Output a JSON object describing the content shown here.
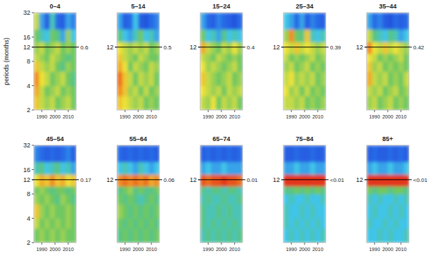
{
  "chart_data": [
    {
      "type": "heatmap",
      "title": "0–4",
      "y_label": "periods (months)",
      "log": "y",
      "xlim": [
        1984,
        2016
      ],
      "xticks": [
        1990,
        2000,
        2010
      ],
      "ylim": [
        2,
        32
      ],
      "yticks": [
        2,
        4,
        8,
        12,
        16,
        32
      ],
      "reference_line": 12,
      "annotation": "0.6",
      "zlim": [
        0,
        1
      ],
      "x_edges": [
        1984,
        1988,
        1992,
        1996,
        2000,
        2004,
        2008,
        2012,
        2016
      ],
      "y_edges": [
        2,
        3,
        4,
        6,
        8,
        10,
        14,
        20,
        32
      ],
      "cells": [
        [
          0.7,
          0.6,
          0.55,
          0.6,
          0.5,
          0.55,
          0.6,
          0.5
        ],
        [
          0.75,
          0.6,
          0.5,
          0.55,
          0.6,
          0.5,
          0.55,
          0.5
        ],
        [
          0.8,
          0.65,
          0.6,
          0.5,
          0.55,
          0.6,
          0.5,
          0.45
        ],
        [
          0.7,
          0.6,
          0.55,
          0.6,
          0.5,
          0.45,
          0.55,
          0.5
        ],
        [
          0.6,
          0.55,
          0.5,
          0.6,
          0.55,
          0.5,
          0.45,
          0.5
        ],
        [
          0.55,
          0.6,
          0.5,
          0.55,
          0.6,
          0.5,
          0.55,
          0.5
        ],
        [
          0.5,
          0.4,
          0.35,
          0.5,
          0.45,
          0.3,
          0.55,
          0.35
        ],
        [
          0.6,
          0.3,
          0.15,
          0.4,
          0.2,
          0.15,
          0.3,
          0.25
        ]
      ]
    },
    {
      "type": "heatmap",
      "title": "5–14",
      "log": "y",
      "xlim": [
        1984,
        2016
      ],
      "xticks": [
        1990,
        2000,
        2010
      ],
      "ylim": [
        2,
        32
      ],
      "yticks": [
        12
      ],
      "reference_line": 12,
      "annotation": "0.5",
      "zlim": [
        0,
        1
      ],
      "x_edges": [
        1984,
        1988,
        1992,
        1996,
        2000,
        2004,
        2008,
        2012,
        2016
      ],
      "y_edges": [
        2,
        3,
        4,
        6,
        8,
        10,
        14,
        20,
        32
      ],
      "cells": [
        [
          0.7,
          0.65,
          0.6,
          0.55,
          0.6,
          0.5,
          0.55,
          0.5
        ],
        [
          0.8,
          0.7,
          0.55,
          0.6,
          0.5,
          0.6,
          0.5,
          0.55
        ],
        [
          0.85,
          0.7,
          0.6,
          0.5,
          0.6,
          0.55,
          0.6,
          0.5
        ],
        [
          0.75,
          0.65,
          0.5,
          0.6,
          0.55,
          0.5,
          0.6,
          0.55
        ],
        [
          0.7,
          0.6,
          0.55,
          0.5,
          0.6,
          0.55,
          0.5,
          0.5
        ],
        [
          0.65,
          0.6,
          0.55,
          0.6,
          0.55,
          0.6,
          0.5,
          0.55
        ],
        [
          0.45,
          0.35,
          0.3,
          0.4,
          0.5,
          0.35,
          0.4,
          0.3
        ],
        [
          0.3,
          0.15,
          0.2,
          0.35,
          0.15,
          0.1,
          0.2,
          0.25
        ]
      ]
    },
    {
      "type": "heatmap",
      "title": "15–24",
      "log": "y",
      "xlim": [
        1984,
        2016
      ],
      "xticks": [
        1990,
        2000,
        2010
      ],
      "ylim": [
        2,
        32
      ],
      "yticks": [
        12
      ],
      "reference_line": 12,
      "annotation": "0.4",
      "zlim": [
        0,
        1
      ],
      "x_edges": [
        1984,
        1988,
        1992,
        1996,
        2000,
        2004,
        2008,
        2012,
        2016
      ],
      "y_edges": [
        2,
        3,
        4,
        6,
        8,
        10,
        14,
        20,
        32
      ],
      "cells": [
        [
          0.6,
          0.55,
          0.65,
          0.5,
          0.6,
          0.55,
          0.6,
          0.5
        ],
        [
          0.65,
          0.6,
          0.55,
          0.6,
          0.5,
          0.6,
          0.55,
          0.6
        ],
        [
          0.7,
          0.6,
          0.55,
          0.5,
          0.55,
          0.6,
          0.5,
          0.55
        ],
        [
          0.65,
          0.55,
          0.6,
          0.55,
          0.5,
          0.55,
          0.6,
          0.5
        ],
        [
          0.6,
          0.55,
          0.5,
          0.6,
          0.55,
          0.5,
          0.55,
          0.5
        ],
        [
          0.75,
          0.6,
          0.55,
          0.5,
          0.6,
          0.55,
          0.65,
          0.55
        ],
        [
          0.5,
          0.35,
          0.4,
          0.3,
          0.45,
          0.35,
          0.4,
          0.35
        ],
        [
          0.3,
          0.2,
          0.15,
          0.25,
          0.2,
          0.15,
          0.1,
          0.2
        ]
      ]
    },
    {
      "type": "heatmap",
      "title": "25–34",
      "log": "y",
      "xlim": [
        1984,
        2016
      ],
      "xticks": [
        1990,
        2000,
        2010
      ],
      "ylim": [
        2,
        32
      ],
      "yticks": [
        12
      ],
      "reference_line": 12,
      "annotation": "0.39",
      "zlim": [
        0,
        1
      ],
      "x_edges": [
        1984,
        1988,
        1992,
        1996,
        2000,
        2004,
        2008,
        2012,
        2016
      ],
      "y_edges": [
        2,
        3,
        4,
        6,
        8,
        10,
        14,
        20,
        32
      ],
      "cells": [
        [
          0.6,
          0.6,
          0.55,
          0.6,
          0.5,
          0.55,
          0.5,
          0.55
        ],
        [
          0.65,
          0.55,
          0.6,
          0.5,
          0.6,
          0.5,
          0.55,
          0.5
        ],
        [
          0.6,
          0.65,
          0.55,
          0.6,
          0.55,
          0.6,
          0.5,
          0.55
        ],
        [
          0.55,
          0.6,
          0.5,
          0.55,
          0.6,
          0.5,
          0.55,
          0.5
        ],
        [
          0.6,
          0.5,
          0.55,
          0.5,
          0.55,
          0.6,
          0.5,
          0.55
        ],
        [
          0.65,
          0.6,
          0.7,
          0.6,
          0.65,
          0.6,
          0.55,
          0.6
        ],
        [
          0.55,
          0.8,
          0.5,
          0.45,
          0.7,
          0.4,
          0.35,
          0.4
        ],
        [
          0.35,
          0.3,
          0.2,
          0.3,
          0.15,
          0.25,
          0.2,
          0.15
        ]
      ]
    },
    {
      "type": "heatmap",
      "title": "35–44",
      "log": "y",
      "xlim": [
        1984,
        2016
      ],
      "xticks": [
        1990,
        2000,
        2010
      ],
      "ylim": [
        2,
        32
      ],
      "yticks": [
        12
      ],
      "reference_line": 12,
      "annotation": "0.42",
      "zlim": [
        0,
        1
      ],
      "x_edges": [
        1984,
        1988,
        1992,
        1996,
        2000,
        2004,
        2008,
        2012,
        2016
      ],
      "y_edges": [
        2,
        3,
        4,
        6,
        8,
        10,
        14,
        20,
        32
      ],
      "cells": [
        [
          0.55,
          0.6,
          0.5,
          0.55,
          0.6,
          0.5,
          0.55,
          0.5
        ],
        [
          0.6,
          0.55,
          0.6,
          0.5,
          0.55,
          0.6,
          0.5,
          0.55
        ],
        [
          0.75,
          0.6,
          0.55,
          0.6,
          0.5,
          0.55,
          0.5,
          0.6
        ],
        [
          0.7,
          0.55,
          0.6,
          0.5,
          0.55,
          0.5,
          0.55,
          0.5
        ],
        [
          0.65,
          0.6,
          0.5,
          0.55,
          0.5,
          0.55,
          0.6,
          0.5
        ],
        [
          0.8,
          0.65,
          0.6,
          0.7,
          0.6,
          0.65,
          0.6,
          0.55
        ],
        [
          0.6,
          0.45,
          0.4,
          0.35,
          0.45,
          0.4,
          0.3,
          0.35
        ],
        [
          0.3,
          0.2,
          0.25,
          0.15,
          0.1,
          0.2,
          0.15,
          0.2
        ]
      ]
    },
    {
      "type": "heatmap",
      "title": "45–54",
      "log": "y",
      "xlim": [
        1984,
        2016
      ],
      "xticks": [
        1990,
        2000,
        2010
      ],
      "ylim": [
        2,
        32
      ],
      "yticks": [
        2,
        4,
        8,
        12,
        16,
        32
      ],
      "reference_line": 12,
      "annotation": "0.17",
      "zlim": [
        0,
        1
      ],
      "x_edges": [
        1984,
        1988,
        1992,
        1996,
        2000,
        2004,
        2008,
        2012,
        2016
      ],
      "y_edges": [
        2,
        3,
        4,
        6,
        8,
        10,
        14,
        20,
        32
      ],
      "cells": [
        [
          0.5,
          0.55,
          0.5,
          0.55,
          0.5,
          0.55,
          0.5,
          0.5
        ],
        [
          0.6,
          0.5,
          0.55,
          0.5,
          0.55,
          0.5,
          0.55,
          0.5
        ],
        [
          0.7,
          0.55,
          0.5,
          0.55,
          0.5,
          0.5,
          0.55,
          0.5
        ],
        [
          0.55,
          0.5,
          0.55,
          0.5,
          0.45,
          0.55,
          0.5,
          0.45
        ],
        [
          0.5,
          0.55,
          0.5,
          0.45,
          0.5,
          0.5,
          0.45,
          0.5
        ],
        [
          0.65,
          0.75,
          0.7,
          0.8,
          0.7,
          0.75,
          0.65,
          0.7
        ],
        [
          0.4,
          0.45,
          0.35,
          0.4,
          0.45,
          0.35,
          0.4,
          0.3
        ],
        [
          0.25,
          0.2,
          0.15,
          0.2,
          0.15,
          0.2,
          0.25,
          0.15
        ]
      ]
    },
    {
      "type": "heatmap",
      "title": "55–64",
      "log": "y",
      "xlim": [
        1984,
        2016
      ],
      "xticks": [
        1990,
        2000,
        2010
      ],
      "ylim": [
        2,
        32
      ],
      "yticks": [
        12
      ],
      "reference_line": 12,
      "annotation": "0.06",
      "zlim": [
        0,
        1
      ],
      "x_edges": [
        1984,
        1988,
        1992,
        1996,
        2000,
        2004,
        2008,
        2012,
        2016
      ],
      "y_edges": [
        2,
        3,
        4,
        6,
        8,
        10,
        14,
        20,
        32
      ],
      "cells": [
        [
          0.45,
          0.5,
          0.45,
          0.5,
          0.45,
          0.5,
          0.45,
          0.5
        ],
        [
          0.5,
          0.45,
          0.5,
          0.45,
          0.5,
          0.45,
          0.5,
          0.45
        ],
        [
          0.55,
          0.5,
          0.45,
          0.5,
          0.45,
          0.5,
          0.45,
          0.5
        ],
        [
          0.5,
          0.45,
          0.5,
          0.45,
          0.4,
          0.45,
          0.5,
          0.45
        ],
        [
          0.45,
          0.5,
          0.55,
          0.45,
          0.5,
          0.45,
          0.45,
          0.5
        ],
        [
          0.8,
          0.85,
          0.8,
          0.85,
          0.8,
          0.85,
          0.75,
          0.8
        ],
        [
          0.35,
          0.4,
          0.35,
          0.3,
          0.4,
          0.35,
          0.3,
          0.35
        ],
        [
          0.2,
          0.15,
          0.2,
          0.15,
          0.2,
          0.15,
          0.2,
          0.15
        ]
      ]
    },
    {
      "type": "heatmap",
      "title": "65–74",
      "log": "y",
      "xlim": [
        1984,
        2016
      ],
      "xticks": [
        1990,
        2000,
        2010
      ],
      "ylim": [
        2,
        32
      ],
      "yticks": [
        12
      ],
      "reference_line": 12,
      "annotation": "0.01",
      "zlim": [
        0,
        1
      ],
      "x_edges": [
        1984,
        1988,
        1992,
        1996,
        2000,
        2004,
        2008,
        2012,
        2016
      ],
      "y_edges": [
        2,
        3,
        4,
        6,
        8,
        10,
        14,
        20,
        32
      ],
      "cells": [
        [
          0.4,
          0.45,
          0.4,
          0.45,
          0.4,
          0.45,
          0.4,
          0.45
        ],
        [
          0.45,
          0.4,
          0.45,
          0.4,
          0.45,
          0.4,
          0.45,
          0.4
        ],
        [
          0.45,
          0.4,
          0.4,
          0.45,
          0.4,
          0.45,
          0.4,
          0.4
        ],
        [
          0.4,
          0.45,
          0.4,
          0.4,
          0.45,
          0.4,
          0.4,
          0.45
        ],
        [
          0.45,
          0.4,
          0.45,
          0.45,
          0.4,
          0.45,
          0.45,
          0.4
        ],
        [
          0.9,
          0.85,
          0.9,
          0.9,
          0.95,
          0.9,
          0.9,
          0.85
        ],
        [
          0.3,
          0.35,
          0.3,
          0.3,
          0.35,
          0.3,
          0.3,
          0.3
        ],
        [
          0.15,
          0.2,
          0.15,
          0.2,
          0.15,
          0.2,
          0.15,
          0.2
        ]
      ]
    },
    {
      "type": "heatmap",
      "title": "75–84",
      "log": "y",
      "xlim": [
        1984,
        2016
      ],
      "xticks": [
        1990,
        2000,
        2010
      ],
      "ylim": [
        2,
        32
      ],
      "yticks": [
        12
      ],
      "reference_line": 12,
      "annotation": "<0.01",
      "zlim": [
        0,
        1
      ],
      "x_edges": [
        1984,
        1988,
        1992,
        1996,
        2000,
        2004,
        2008,
        2012,
        2016
      ],
      "y_edges": [
        2,
        3,
        4,
        6,
        8,
        10,
        14,
        20,
        32
      ],
      "cells": [
        [
          0.35,
          0.4,
          0.35,
          0.4,
          0.35,
          0.4,
          0.35,
          0.4
        ],
        [
          0.4,
          0.35,
          0.4,
          0.35,
          0.4,
          0.35,
          0.4,
          0.35
        ],
        [
          0.4,
          0.35,
          0.35,
          0.4,
          0.35,
          0.4,
          0.35,
          0.35
        ],
        [
          0.35,
          0.4,
          0.35,
          0.35,
          0.4,
          0.35,
          0.35,
          0.4
        ],
        [
          0.45,
          0.45,
          0.5,
          0.45,
          0.5,
          0.45,
          0.5,
          0.45
        ],
        [
          0.95,
          0.95,
          0.95,
          0.95,
          0.95,
          0.95,
          0.95,
          0.95
        ],
        [
          0.3,
          0.3,
          0.35,
          0.3,
          0.3,
          0.35,
          0.3,
          0.3
        ],
        [
          0.15,
          0.15,
          0.2,
          0.15,
          0.15,
          0.2,
          0.15,
          0.15
        ]
      ]
    },
    {
      "type": "heatmap",
      "title": "85+",
      "log": "y",
      "xlim": [
        1984,
        2016
      ],
      "xticks": [
        1990,
        2000,
        2010
      ],
      "ylim": [
        2,
        32
      ],
      "yticks": [
        12
      ],
      "reference_line": 12,
      "annotation": "<0.01",
      "zlim": [
        0,
        1
      ],
      "x_edges": [
        1984,
        1988,
        1992,
        1996,
        2000,
        2004,
        2008,
        2012,
        2016
      ],
      "y_edges": [
        2,
        3,
        4,
        6,
        8,
        10,
        14,
        20,
        32
      ],
      "cells": [
        [
          0.35,
          0.35,
          0.4,
          0.35,
          0.4,
          0.35,
          0.35,
          0.4
        ],
        [
          0.4,
          0.35,
          0.35,
          0.4,
          0.35,
          0.4,
          0.35,
          0.35
        ],
        [
          0.35,
          0.4,
          0.35,
          0.35,
          0.4,
          0.35,
          0.4,
          0.35
        ],
        [
          0.4,
          0.35,
          0.4,
          0.35,
          0.35,
          0.4,
          0.35,
          0.4
        ],
        [
          0.5,
          0.45,
          0.5,
          0.5,
          0.45,
          0.5,
          0.5,
          0.45
        ],
        [
          0.95,
          0.95,
          0.95,
          0.95,
          0.95,
          0.95,
          0.95,
          0.95
        ],
        [
          0.3,
          0.35,
          0.3,
          0.3,
          0.35,
          0.3,
          0.3,
          0.35
        ],
        [
          0.15,
          0.2,
          0.15,
          0.15,
          0.2,
          0.15,
          0.2,
          0.15
        ]
      ]
    }
  ]
}
